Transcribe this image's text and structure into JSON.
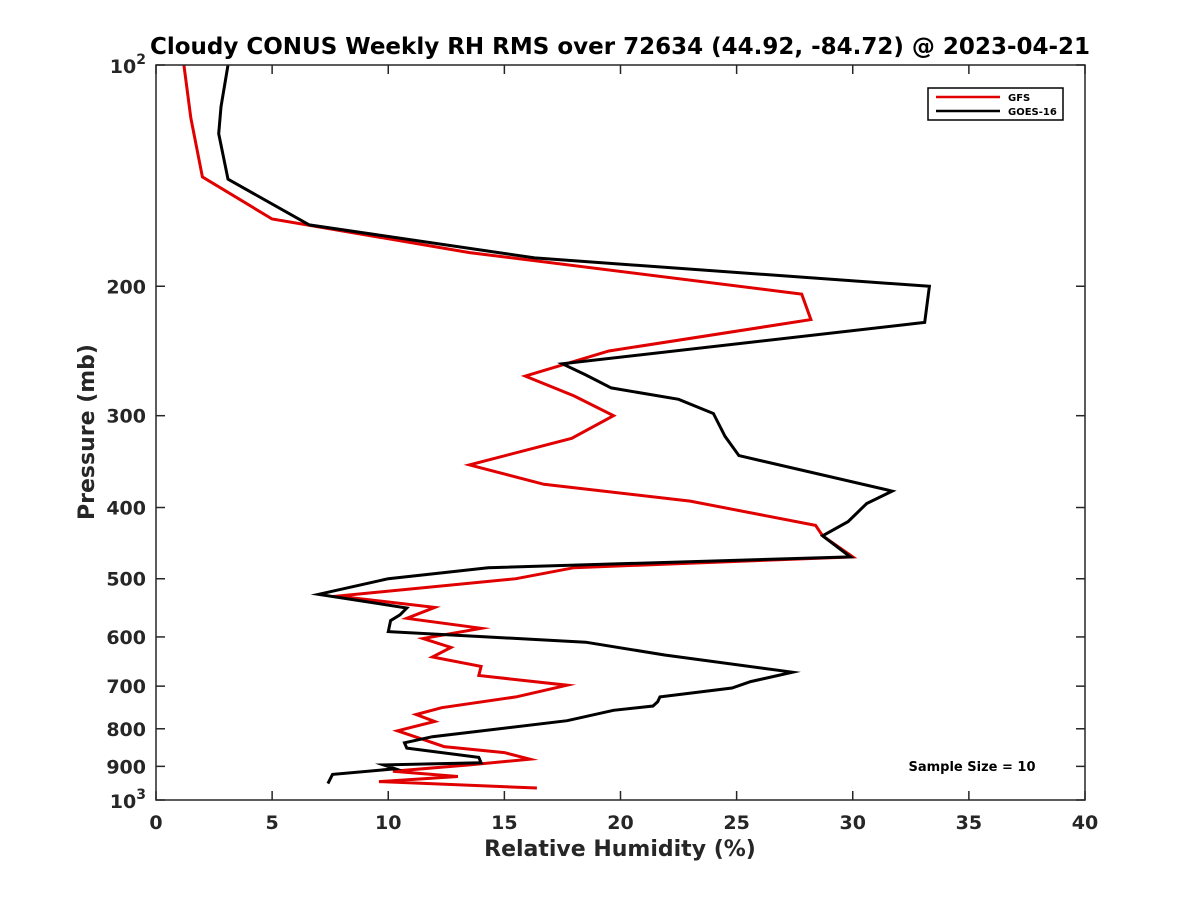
{
  "chart_data": {
    "type": "line",
    "title": "Cloudy CONUS Weekly RH RMS over 72634 (44.92, -84.72) @ 2023-04-21",
    "xlabel": "Relative Humidity (%)",
    "ylabel": "Pressure (mb)",
    "xlim": [
      0,
      40
    ],
    "ylim": [
      100,
      1000
    ],
    "y_scale": "log",
    "y_reversed": true,
    "x_ticks": [
      "0",
      "5",
      "10",
      "15",
      "20",
      "25",
      "30",
      "35",
      "40"
    ],
    "y_ticks": [
      {
        "value": 100,
        "base": "10",
        "exp": "2"
      },
      {
        "value": 200,
        "label": "200"
      },
      {
        "value": 300,
        "label": "300"
      },
      {
        "value": 400,
        "label": "400"
      },
      {
        "value": 500,
        "label": "500"
      },
      {
        "value": 600,
        "label": "600"
      },
      {
        "value": 700,
        "label": "700"
      },
      {
        "value": 800,
        "label": "800"
      },
      {
        "value": 900,
        "label": "900"
      },
      {
        "value": 1000,
        "base": "10",
        "exp": "3"
      }
    ],
    "legend_position": "top-right",
    "annotation": "Sample Size = 10",
    "grid": false,
    "series": [
      {
        "name": "GFS",
        "color": "#e00000",
        "x": [
          1.2,
          1.5,
          2.0,
          5.0,
          13.5,
          27.8,
          28.2,
          19.5,
          15.9,
          18.0,
          19.7,
          17.9,
          13.5,
          16.7,
          23.0,
          28.4,
          28.7,
          30.0,
          18.0,
          15.5,
          7.8,
          12.0,
          10.8,
          14.0,
          11.5,
          12.7,
          11.9,
          14.0,
          13.9,
          17.7,
          15.5,
          12.3,
          11.2,
          12.0,
          10.4,
          11.5,
          12.4,
          15.0,
          16.1,
          13.5,
          10.2,
          13.0,
          9.6,
          16.4
        ],
        "y": [
          100,
          118,
          142,
          162,
          180,
          205,
          222,
          245,
          265,
          282,
          300,
          322,
          350,
          372,
          392,
          423,
          437,
          467,
          483,
          500,
          528,
          547,
          566,
          584,
          603,
          620,
          639,
          658,
          677,
          698,
          724,
          749,
          765,
          782,
          805,
          827,
          846,
          862,
          880,
          896,
          914,
          929,
          944,
          963
        ]
      },
      {
        "name": "GOES-16",
        "color": "#000000",
        "x": [
          3.1,
          2.8,
          2.7,
          3.1,
          6.6,
          16.3,
          33.3,
          33.1,
          17.5,
          18.5,
          19.6,
          22.5,
          24.0,
          24.5,
          25.1,
          31.7,
          30.6,
          29.8,
          28.7,
          29.9,
          14.3,
          10.0,
          7.0,
          10.8,
          10.5,
          10.1,
          10.0,
          18.5,
          21.9,
          27.4,
          25.6,
          24.8,
          21.7,
          21.6,
          21.4,
          19.7,
          17.7,
          11.9,
          10.7,
          10.8,
          13.9,
          14.0,
          9.8,
          10.3,
          7.6,
          7.4
        ],
        "y": [
          100,
          114,
          124,
          143,
          165,
          183,
          200,
          224,
          255,
          264,
          275,
          285,
          298,
          320,
          340,
          380,
          395,
          418,
          437,
          467,
          483,
          500,
          525,
          548,
          560,
          570,
          590,
          610,
          635,
          670,
          690,
          704,
          724,
          735,
          745,
          755,
          780,
          820,
          836,
          850,
          875,
          890,
          896,
          907,
          923,
          950
        ]
      }
    ]
  }
}
